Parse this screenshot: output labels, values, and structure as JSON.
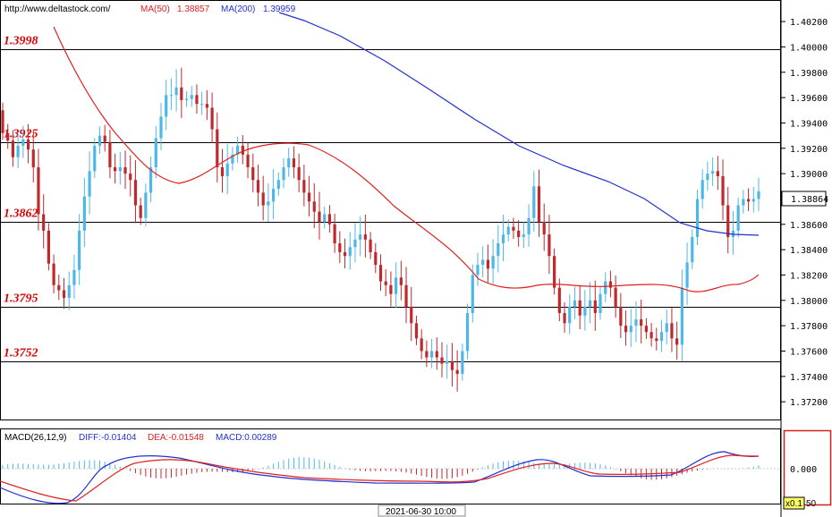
{
  "header": {
    "url": "http://www.deltastock.com/",
    "ma50_label": "MA(50)",
    "ma50_value": "1.38857",
    "ma200_label": "MA(200)",
    "ma200_value": "1.39959"
  },
  "colors": {
    "up": "#4db8e8",
    "down": "#c0282c",
    "ma50": "#e02020",
    "ma200": "#2030d0",
    "level_text": "#e00000",
    "macd_diff": "#2030d0",
    "macd_dea": "#e02020"
  },
  "levels": [
    {
      "label": "1.3998",
      "value": 1.3998
    },
    {
      "label": "1.3925",
      "value": 1.3925
    },
    {
      "label": "1.3862",
      "value": 1.3862
    },
    {
      "label": "1.3795",
      "value": 1.3795
    },
    {
      "label": "1.3752",
      "value": 1.3752
    }
  ],
  "price_axis": {
    "ticks": [
      "1.40200",
      "1.40000",
      "1.39800",
      "1.39600",
      "1.39400",
      "1.39200",
      "1.39000",
      "1.38800",
      "1.38600",
      "1.38400",
      "1.38200",
      "1.38000",
      "1.37800",
      "1.37600",
      "1.37400",
      "1.37200"
    ],
    "current_price": "1.38864",
    "ylim": [
      1.3706,
      1.4037
    ]
  },
  "macd": {
    "label": "MACD(26,12,9)",
    "diff_label": "DIFF:-0.01404",
    "dea_label": "DEA:-0.01548",
    "macd_label": "MACD:0.00289",
    "zero_label": "0.000",
    "scale_label": "x0.1",
    "scale_suffix": "50"
  },
  "footer": {
    "time_label": "2021-06-30 10:00"
  },
  "chart_data": {
    "type": "candlestick",
    "price_range": [
      1.3706,
      1.4037
    ],
    "close": [
      1.3932,
      1.3926,
      1.3913,
      1.3922,
      1.3927,
      1.3919,
      1.3905,
      1.3868,
      1.3855,
      1.3829,
      1.3812,
      1.3808,
      1.3802,
      1.3812,
      1.3824,
      1.3855,
      1.3882,
      1.3902,
      1.3922,
      1.393,
      1.3925,
      1.3905,
      1.3902,
      1.3905,
      1.39,
      1.3895,
      1.3875,
      1.3865,
      1.3885,
      1.3905,
      1.3928,
      1.3945,
      1.3962,
      1.3962,
      1.3968,
      1.3958,
      1.3959,
      1.3962,
      1.3955,
      1.3955,
      1.3952,
      1.3935,
      1.3905,
      1.3898,
      1.3908,
      1.3915,
      1.3922,
      1.3915,
      1.3905,
      1.3895,
      1.3885,
      1.3875,
      1.3878,
      1.3888,
      1.3895,
      1.3905,
      1.3912,
      1.3905,
      1.3895,
      1.3885,
      1.3878,
      1.387,
      1.3862,
      1.3868,
      1.386,
      1.3845,
      1.3838,
      1.3835,
      1.3842,
      1.3848,
      1.3852,
      1.3848,
      1.3838,
      1.3828,
      1.3815,
      1.3812,
      1.3805,
      1.3818,
      1.3812,
      1.3795,
      1.3782,
      1.377,
      1.376,
      1.3755,
      1.376,
      1.3755,
      1.375,
      1.3752,
      1.3745,
      1.3742,
      1.376,
      1.379,
      1.382,
      1.3828,
      1.3832,
      1.3825,
      1.3835,
      1.3845,
      1.3852,
      1.3858,
      1.3855,
      1.385,
      1.3852,
      1.3865,
      1.389,
      1.3862,
      1.3852,
      1.3835,
      1.381,
      1.379,
      1.3782,
      1.3795,
      1.38,
      1.3788,
      1.3795,
      1.38,
      1.379,
      1.3805,
      1.3815,
      1.381,
      1.3795,
      1.378,
      1.3775,
      1.378,
      1.3785,
      1.378,
      1.3775,
      1.377,
      1.3768,
      1.3775,
      1.3782,
      1.377,
      1.3765,
      1.381,
      1.383,
      1.385,
      1.388,
      1.3895,
      1.39,
      1.3902,
      1.3898,
      1.3875,
      1.385,
      1.3855,
      1.3875,
      1.388,
      1.3878,
      1.388,
      1.3886
    ]
  }
}
